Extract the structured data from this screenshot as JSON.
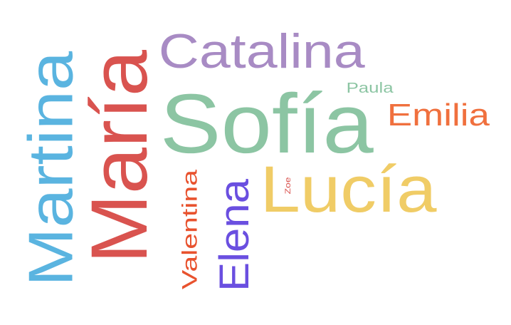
{
  "words": [
    {
      "text": "Sofía",
      "color": "#8cc5a3",
      "orientation": "horizontal"
    },
    {
      "text": "María",
      "color": "#d9534f",
      "orientation": "vertical"
    },
    {
      "text": "Martina",
      "color": "#5ab4e0",
      "orientation": "vertical"
    },
    {
      "text": "Lucía",
      "color": "#f0cc66",
      "orientation": "horizontal"
    },
    {
      "text": "Catalina",
      "color": "#a88bc4",
      "orientation": "horizontal"
    },
    {
      "text": "Elena",
      "color": "#6a4fe0",
      "orientation": "vertical"
    },
    {
      "text": "Emilia",
      "color": "#f0703e",
      "orientation": "horizontal"
    },
    {
      "text": "Valentina",
      "color": "#e8522e",
      "orientation": "vertical"
    },
    {
      "text": "Paula",
      "color": "#8cc5a3",
      "orientation": "horizontal"
    },
    {
      "text": "Zoe",
      "color": "#d9534f",
      "orientation": "vertical"
    }
  ]
}
